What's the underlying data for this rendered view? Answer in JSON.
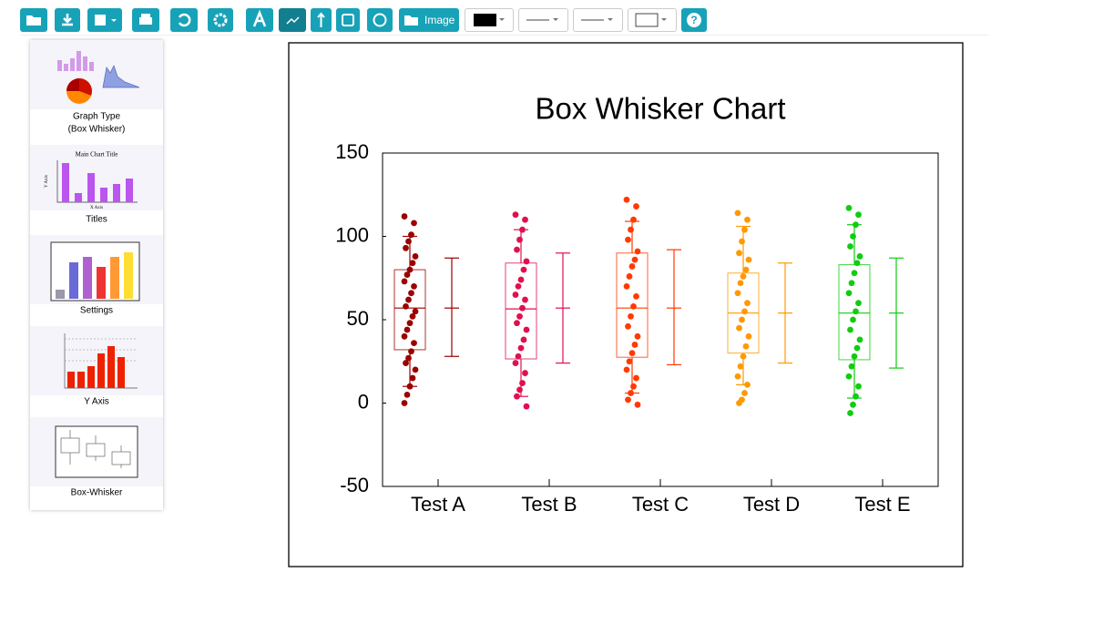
{
  "toolbar": {
    "image_button": "Image"
  },
  "sidebar": {
    "items": [
      {
        "label": [
          "Graph Type",
          "(Box Whisker)"
        ]
      },
      {
        "label": [
          "Titles"
        ],
        "thumb_title": "Main Chart Title",
        "thumb_y": "Y Axis",
        "thumb_x": "X Axis"
      },
      {
        "label": [
          "Settings"
        ]
      },
      {
        "label": [
          "Y Axis"
        ]
      },
      {
        "label": [
          "Box-Whisker"
        ]
      }
    ]
  },
  "chart_data": {
    "type": "box",
    "title": "Box Whisker Chart",
    "categories": [
      "Test A",
      "Test B",
      "Test C",
      "Test D",
      "Test E"
    ],
    "ylim": [
      -50,
      150
    ],
    "yticks": [
      -50,
      0,
      50,
      100,
      150
    ],
    "grid": false,
    "series": [
      {
        "name": "Test A",
        "color": "#9b0000",
        "low": 10,
        "q1": 32,
        "median": 57,
        "q3": 80,
        "high": 100,
        "err_low": 28,
        "mean": 57,
        "err_high": 87,
        "points": [
          112,
          108,
          101,
          97,
          93,
          88,
          84,
          80,
          77,
          73,
          70,
          66,
          62,
          58,
          55,
          52,
          48,
          44,
          40,
          36,
          31,
          27,
          24,
          20,
          15,
          10,
          5,
          0
        ]
      },
      {
        "name": "Test B",
        "color": "#e0104f",
        "low": 4,
        "q1": 26.5,
        "median": 56.5,
        "q3": 84,
        "high": 104,
        "err_low": 24,
        "mean": 57,
        "err_high": 90,
        "points": [
          113,
          110,
          104,
          98,
          92,
          85,
          80,
          74,
          70,
          65,
          62,
          57,
          52,
          48,
          44,
          38,
          33,
          28,
          24,
          18,
          12,
          8,
          4,
          -2
        ]
      },
      {
        "name": "Test C",
        "color": "#ff3a00",
        "low": 6,
        "q1": 27.5,
        "median": 57,
        "q3": 90,
        "high": 109,
        "err_low": 23,
        "mean": 57,
        "err_high": 92,
        "points": [
          122,
          118,
          110,
          104,
          98,
          91,
          86,
          82,
          76,
          70,
          64,
          58,
          52,
          46,
          40,
          35,
          30,
          25,
          20,
          15,
          10,
          6,
          2,
          -1
        ]
      },
      {
        "name": "Test D",
        "color": "#ff9900",
        "low": 11,
        "q1": 30,
        "median": 54,
        "q3": 78,
        "high": 106,
        "err_low": 24,
        "mean": 54,
        "err_high": 84,
        "points": [
          114,
          110,
          104,
          97,
          90,
          86,
          80,
          76,
          72,
          66,
          60,
          55,
          50,
          45,
          40,
          34,
          28,
          22,
          16,
          11,
          6,
          2,
          0
        ]
      },
      {
        "name": "Test E",
        "color": "#11cc11",
        "low": 3,
        "q1": 26,
        "median": 54,
        "q3": 83,
        "high": 107,
        "err_low": 21,
        "mean": 54,
        "err_high": 87,
        "points": [
          117,
          113,
          107,
          100,
          94,
          88,
          84,
          78,
          72,
          66,
          60,
          55,
          50,
          44,
          38,
          33,
          28,
          22,
          16,
          10,
          4,
          -1,
          -6
        ]
      }
    ]
  }
}
